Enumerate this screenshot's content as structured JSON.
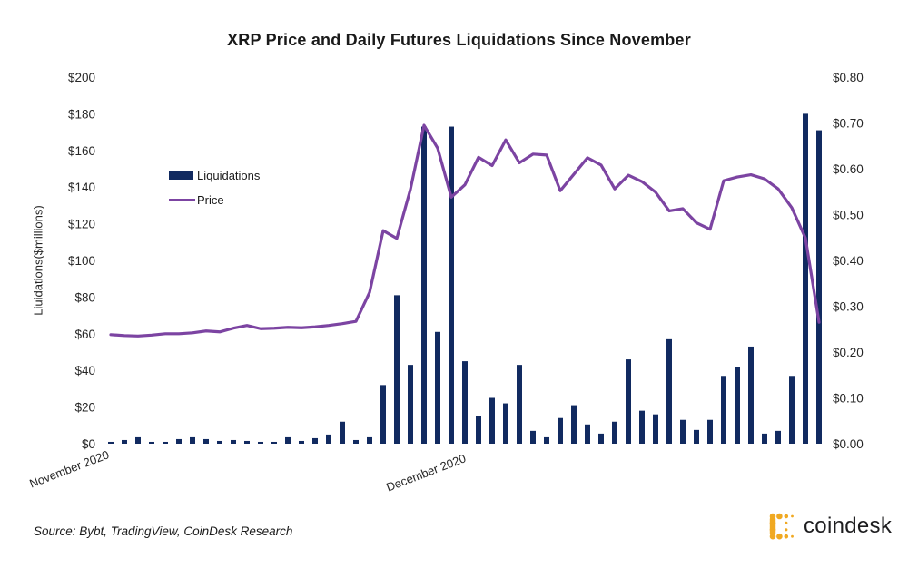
{
  "title": "XRP Price and Daily Futures Liquidations Since November",
  "y_axis_left": {
    "title": "Liuidations($millions)",
    "ticks": [
      "$200",
      "$180",
      "$160",
      "$140",
      "$120",
      "$100",
      "$80",
      "$60",
      "$40",
      "$20",
      "$0"
    ]
  },
  "y_axis_right": {
    "ticks": [
      "$0.80",
      "$0.70",
      "$0.60",
      "$0.50",
      "$0.40",
      "$0.30",
      "$0.20",
      "$0.10",
      "$0.00"
    ]
  },
  "x_axis": {
    "labels": [
      "November 2020",
      "December 2020"
    ]
  },
  "legend": {
    "items": [
      {
        "label": "Liquidations",
        "type": "bar"
      },
      {
        "label": "Price",
        "type": "line"
      }
    ]
  },
  "source_note": "Source: Bybt, TradingView, CoinDesk Research",
  "logo": {
    "text": "coindesk"
  },
  "colors": {
    "bar": "#112A60",
    "line": "#7C44A2",
    "title_text": "#1A1A1A",
    "axis_text": "#262626",
    "logo_gold": "#F0A922",
    "logo_text": "#1D1D1F"
  },
  "chart_data": {
    "type": "combo",
    "title": "XRP Price and Daily Futures Liquidations Since November",
    "x_unit": "daily, November 2020 through late December 2020",
    "x_tick_labels_visible": [
      "November 2020",
      "December 2020"
    ],
    "left_ylabel": "Liuidations($millions)",
    "left_ylim": [
      0,
      200
    ],
    "right_ylim": [
      0,
      0.8
    ],
    "grid": false,
    "legend_position": "inside-upper-left",
    "series": [
      {
        "name": "Liquidations",
        "type": "bar",
        "axis": "left",
        "unit": "$ millions",
        "values": [
          1,
          2,
          3.5,
          1,
          1,
          2.5,
          3.5,
          2.5,
          1.5,
          2,
          1.5,
          1,
          1,
          3.5,
          1.5,
          3,
          5,
          12,
          2,
          3.5,
          32,
          81,
          43,
          173,
          61,
          173,
          45,
          15,
          25,
          22,
          43,
          7,
          3.5,
          14,
          21,
          10.5,
          5.5,
          12,
          46,
          18,
          16,
          57,
          13,
          7.5,
          13,
          37,
          42,
          53,
          5.5,
          7,
          37,
          180,
          171
        ]
      },
      {
        "name": "Price",
        "type": "line",
        "axis": "right",
        "unit": "USD",
        "values": [
          0.238,
          0.236,
          0.235,
          0.237,
          0.24,
          0.24,
          0.242,
          0.246,
          0.244,
          0.252,
          0.258,
          0.251,
          0.252,
          0.254,
          0.253,
          0.255,
          0.258,
          0.262,
          0.267,
          0.33,
          0.465,
          0.448,
          0.555,
          0.695,
          0.645,
          0.538,
          0.565,
          0.625,
          0.607,
          0.663,
          0.613,
          0.632,
          0.63,
          0.552,
          0.588,
          0.624,
          0.608,
          0.556,
          0.586,
          0.572,
          0.549,
          0.508,
          0.513,
          0.482,
          0.468,
          0.574,
          0.582,
          0.587,
          0.578,
          0.556,
          0.515,
          0.449,
          0.265
        ]
      }
    ]
  }
}
